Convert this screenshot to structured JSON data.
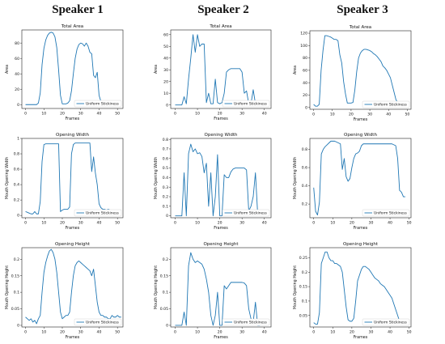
{
  "speakers": [
    "Speaker 1",
    "Speaker 2",
    "Speaker 3"
  ],
  "colors": {
    "series": "#1f77b4",
    "axis": "#222222",
    "text": "#111111"
  },
  "chart_data": [
    {
      "type": "line",
      "speaker": "Speaker 1",
      "title": "Total Area",
      "xlabel": "Frames",
      "ylabel": "Area",
      "xlim": [
        -2,
        53
      ],
      "ylim": [
        -5,
        97
      ],
      "xticks": [
        0,
        10,
        20,
        30,
        40,
        50
      ],
      "yticks": [
        0,
        20,
        40,
        60,
        80
      ],
      "legend": "lower right",
      "series": [
        {
          "name": "Uniform Stickiness",
          "x": [
            0,
            2,
            4,
            6,
            7,
            8,
            9,
            10,
            11,
            12,
            13,
            14,
            15,
            16,
            17,
            18,
            19,
            20,
            21,
            22,
            23,
            24,
            25,
            26,
            27,
            28,
            29,
            30,
            31,
            32,
            33,
            34,
            35,
            36,
            37,
            38,
            39,
            40,
            41
          ],
          "y": [
            0,
            0,
            0,
            0,
            2,
            15,
            52,
            73,
            84,
            90,
            93,
            94,
            93,
            88,
            74,
            45,
            12,
            1,
            1,
            1,
            2,
            5,
            18,
            40,
            60,
            72,
            78,
            80,
            79,
            76,
            80,
            76,
            68,
            66,
            38,
            35,
            42,
            12,
            4
          ]
        }
      ]
    },
    {
      "type": "line",
      "speaker": "Speaker 2",
      "title": "Total Area",
      "xlabel": "Frames",
      "ylabel": "Area",
      "xlim": [
        -2,
        43
      ],
      "ylim": [
        -3,
        64
      ],
      "xticks": [
        0,
        10,
        20,
        30,
        40
      ],
      "yticks": [
        0,
        10,
        20,
        30,
        40,
        50,
        60
      ],
      "legend": "lower right",
      "series": [
        {
          "name": "Uniform Stickiness",
          "x": [
            0,
            1,
            2,
            3,
            4,
            5,
            6,
            7,
            8,
            9,
            10,
            11,
            12,
            13,
            14,
            15,
            16,
            17,
            18,
            19,
            20,
            21,
            22,
            23,
            24,
            25,
            26,
            27,
            28,
            29,
            30,
            31,
            32,
            33,
            34,
            35,
            36,
            37
          ],
          "y": [
            0,
            0,
            0,
            0,
            7,
            1,
            22,
            40,
            60,
            45,
            60,
            50,
            52,
            52,
            2,
            10,
            1,
            1,
            22,
            2,
            1,
            2,
            10,
            28,
            30,
            31,
            31,
            31,
            31,
            31,
            28,
            10,
            12,
            1,
            1,
            13,
            1,
            1
          ]
        }
      ]
    },
    {
      "type": "line",
      "speaker": "Speaker 3",
      "title": "Total Area",
      "xlabel": "Frames",
      "ylabel": "Area",
      "xlim": [
        -2,
        52
      ],
      "ylim": [
        -3,
        124
      ],
      "xticks": [
        0,
        10,
        20,
        30,
        40,
        50
      ],
      "yticks": [
        0,
        20,
        40,
        60,
        80,
        100,
        120
      ],
      "legend": "lower right",
      "series": [
        {
          "name": "Uniform Stickiness",
          "x": [
            0,
            1,
            2,
            3,
            4,
            5,
            6,
            7,
            8,
            9,
            10,
            11,
            12,
            13,
            14,
            15,
            16,
            17,
            18,
            19,
            20,
            21,
            22,
            23,
            24,
            25,
            26,
            27,
            28,
            29,
            30,
            31,
            32,
            33,
            34,
            35,
            36,
            37,
            38,
            39,
            40,
            41,
            42,
            43,
            44,
            45,
            46
          ],
          "y": [
            5,
            2,
            2,
            5,
            60,
            92,
            116,
            116,
            115,
            114,
            112,
            110,
            110,
            108,
            85,
            72,
            42,
            22,
            7,
            7,
            7,
            8,
            28,
            58,
            80,
            88,
            92,
            94,
            94,
            93,
            92,
            90,
            87,
            85,
            82,
            78,
            74,
            67,
            64,
            60,
            54,
            48,
            36,
            24,
            12,
            8,
            8
          ]
        }
      ]
    },
    {
      "type": "line",
      "speaker": "Speaker 1",
      "title": "Opening Width",
      "xlabel": "Frames",
      "ylabel": "Mouth Opening Width",
      "xlim": [
        -2,
        53
      ],
      "ylim": [
        -0.03,
        1.0
      ],
      "xticks": [
        0,
        10,
        20,
        30,
        40,
        50
      ],
      "yticks": [
        0.0,
        0.2,
        0.4,
        0.6,
        0.8,
        1.0
      ],
      "legend": "lower right",
      "series": [
        {
          "name": "Uniform Stickiness",
          "x": [
            0,
            1,
            2,
            3,
            4,
            5,
            6,
            7,
            8,
            9,
            10,
            11,
            12,
            13,
            14,
            15,
            16,
            17,
            18,
            19,
            20,
            21,
            22,
            23,
            24,
            25,
            26,
            27,
            28,
            29,
            30,
            31,
            32,
            33,
            34,
            35,
            36,
            37,
            38,
            39,
            40,
            41,
            42,
            43,
            44,
            45,
            46,
            47,
            48,
            49,
            50,
            51,
            52
          ],
          "y": [
            0.05,
            0.04,
            0.03,
            0.02,
            0.02,
            0.05,
            0.02,
            0.02,
            0.18,
            0.7,
            0.92,
            0.93,
            0.93,
            0.93,
            0.93,
            0.93,
            0.93,
            0.93,
            0.93,
            0.05,
            0.07,
            0.08,
            0.08,
            0.08,
            0.11,
            0.8,
            0.92,
            0.94,
            0.94,
            0.94,
            0.94,
            0.94,
            0.94,
            0.94,
            0.94,
            0.94,
            0.57,
            0.76,
            0.55,
            0.4,
            0.15,
            0.1,
            0.08,
            0.08,
            0.07,
            0.08,
            0.07,
            0.06,
            0.07,
            0.07,
            0.06,
            0.06,
            0.07
          ]
        }
      ]
    },
    {
      "type": "line",
      "speaker": "Speaker 2",
      "title": "Opening Width",
      "xlabel": "Frames",
      "ylabel": "Mouth Opening Width",
      "xlim": [
        -2,
        43
      ],
      "ylim": [
        -0.02,
        0.81
      ],
      "xticks": [
        0,
        10,
        20,
        30,
        40
      ],
      "yticks": [
        0.0,
        0.1,
        0.2,
        0.3,
        0.4,
        0.5,
        0.6,
        0.7,
        0.8
      ],
      "legend": "lower right",
      "series": [
        {
          "name": "Uniform Stickiness",
          "x": [
            0,
            1,
            2,
            3,
            4,
            5,
            6,
            7,
            8,
            9,
            10,
            11,
            12,
            13,
            14,
            15,
            16,
            17,
            18,
            19,
            20,
            21,
            22,
            23,
            24,
            25,
            26,
            27,
            28,
            29,
            30,
            31,
            32,
            33,
            34,
            35,
            36,
            37,
            38
          ],
          "y": [
            0.0,
            0.0,
            0.0,
            0.0,
            0.45,
            0.0,
            0.65,
            0.75,
            0.67,
            0.7,
            0.65,
            0.66,
            0.62,
            0.45,
            0.55,
            0.1,
            0.45,
            0.0,
            0.2,
            0.64,
            0.0,
            0.0,
            0.43,
            0.4,
            0.4,
            0.46,
            0.49,
            0.5,
            0.5,
            0.5,
            0.5,
            0.5,
            0.48,
            0.05,
            0.1,
            0.2,
            0.45,
            0.02,
            0.0
          ]
        }
      ]
    },
    {
      "type": "line",
      "speaker": "Speaker 3",
      "title": "Opening Width",
      "xlabel": "Frames",
      "ylabel": "Mouth Opening Width",
      "xlim": [
        -2,
        51
      ],
      "ylim": [
        0.05,
        0.92
      ],
      "xticks": [
        0,
        10,
        20,
        30,
        40,
        50
      ],
      "yticks": [
        0.2,
        0.4,
        0.6,
        0.8
      ],
      "legend": "lower right",
      "series": [
        {
          "name": "Uniform Stickiness",
          "x": [
            0,
            1,
            2,
            3,
            4,
            5,
            6,
            7,
            8,
            9,
            10,
            11,
            12,
            13,
            14,
            15,
            16,
            17,
            18,
            19,
            20,
            21,
            22,
            23,
            24,
            25,
            26,
            27,
            28,
            29,
            30,
            31,
            32,
            33,
            34,
            35,
            36,
            37,
            38,
            39,
            40,
            41,
            42,
            43,
            44,
            45,
            46,
            47,
            48
          ],
          "y": [
            0.38,
            0.12,
            0.08,
            0.22,
            0.75,
            0.8,
            0.83,
            0.85,
            0.87,
            0.89,
            0.89,
            0.89,
            0.88,
            0.87,
            0.86,
            0.58,
            0.7,
            0.5,
            0.45,
            0.48,
            0.6,
            0.7,
            0.75,
            0.76,
            0.78,
            0.84,
            0.86,
            0.86,
            0.86,
            0.86,
            0.86,
            0.86,
            0.86,
            0.86,
            0.86,
            0.86,
            0.86,
            0.86,
            0.86,
            0.86,
            0.86,
            0.86,
            0.85,
            0.84,
            0.7,
            0.35,
            0.33,
            0.28,
            0.28
          ]
        }
      ]
    },
    {
      "type": "line",
      "speaker": "Speaker 1",
      "title": "Opening Height",
      "xlabel": "Frames",
      "ylabel": "Mouth Opening Height",
      "xlim": [
        -2,
        53
      ],
      "ylim": [
        -0.005,
        0.235
      ],
      "xticks": [
        0,
        10,
        20,
        30,
        40,
        50
      ],
      "yticks": [
        0.0,
        0.05,
        0.1,
        0.15,
        0.2
      ],
      "legend": "lower right",
      "series": [
        {
          "name": "Uniform Stickiness",
          "x": [
            0,
            1,
            2,
            3,
            4,
            5,
            6,
            7,
            8,
            9,
            10,
            11,
            12,
            13,
            14,
            15,
            16,
            17,
            18,
            19,
            20,
            21,
            22,
            23,
            24,
            25,
            26,
            27,
            28,
            29,
            30,
            31,
            32,
            33,
            34,
            35,
            36,
            37,
            38,
            39,
            40,
            41,
            42,
            43,
            44,
            45,
            46,
            47,
            48,
            49,
            50,
            51,
            52
          ],
          "y": [
            0.025,
            0.02,
            0.015,
            0.02,
            0.01,
            0.015,
            0.005,
            0.02,
            0.03,
            0.1,
            0.16,
            0.19,
            0.21,
            0.225,
            0.23,
            0.22,
            0.2,
            0.16,
            0.1,
            0.04,
            0.02,
            0.025,
            0.03,
            0.03,
            0.04,
            0.1,
            0.15,
            0.18,
            0.19,
            0.195,
            0.19,
            0.185,
            0.18,
            0.175,
            0.17,
            0.165,
            0.15,
            0.17,
            0.12,
            0.07,
            0.04,
            0.03,
            0.03,
            0.025,
            0.025,
            0.02,
            0.02,
            0.03,
            0.025,
            0.025,
            0.03,
            0.025,
            0.025
          ]
        }
      ]
    },
    {
      "type": "line",
      "speaker": "Speaker 2",
      "title": "Opening Height",
      "xlabel": "Frames",
      "ylabel": "Mouth Opening Height",
      "xlim": [
        -2,
        43
      ],
      "ylim": [
        -0.005,
        0.235
      ],
      "xticks": [
        0,
        10,
        20,
        30,
        40
      ],
      "yticks": [
        0.0,
        0.05,
        0.1,
        0.15,
        0.2
      ],
      "legend": "lower right",
      "series": [
        {
          "name": "Uniform Stickiness",
          "x": [
            0,
            1,
            2,
            3,
            4,
            5,
            6,
            7,
            8,
            9,
            10,
            11,
            12,
            13,
            14,
            15,
            16,
            17,
            18,
            19,
            20,
            21,
            22,
            23,
            24,
            25,
            26,
            27,
            28,
            29,
            30,
            31,
            32,
            33,
            34,
            35,
            36,
            37,
            38
          ],
          "y": [
            0.0,
            0.0,
            0.0,
            0.0,
            0.04,
            0.0,
            0.18,
            0.22,
            0.2,
            0.19,
            0.195,
            0.19,
            0.185,
            0.17,
            0.14,
            0.1,
            0.03,
            0.0,
            0.03,
            0.1,
            0.0,
            0.0,
            0.12,
            0.11,
            0.12,
            0.13,
            0.13,
            0.13,
            0.13,
            0.13,
            0.13,
            0.128,
            0.12,
            0.05,
            0.02,
            0.01,
            0.07,
            0.0,
            0.0
          ]
        }
      ]
    },
    {
      "type": "line",
      "speaker": "Speaker 3",
      "title": "Opening Height",
      "xlabel": "Frames",
      "ylabel": "Mouth Opening Height",
      "xlim": [
        -2,
        51
      ],
      "ylim": [
        0.01,
        0.285
      ],
      "xticks": [
        0,
        10,
        20,
        30,
        40,
        50
      ],
      "yticks": [
        0.05,
        0.1,
        0.15,
        0.2,
        0.25
      ],
      "legend": "lower right",
      "series": [
        {
          "name": "Uniform Stickiness",
          "x": [
            0,
            1,
            2,
            3,
            4,
            5,
            6,
            7,
            8,
            9,
            10,
            11,
            12,
            13,
            14,
            15,
            16,
            17,
            18,
            19,
            20,
            21,
            22,
            23,
            24,
            25,
            26,
            27,
            28,
            29,
            30,
            31,
            32,
            33,
            34,
            35,
            36,
            37,
            38,
            39,
            40,
            41,
            42,
            43,
            44,
            45,
            46
          ],
          "y": [
            0.025,
            0.02,
            0.02,
            0.06,
            0.23,
            0.25,
            0.27,
            0.27,
            0.25,
            0.24,
            0.24,
            0.23,
            0.23,
            0.225,
            0.22,
            0.2,
            0.14,
            0.08,
            0.035,
            0.03,
            0.03,
            0.04,
            0.1,
            0.17,
            0.19,
            0.21,
            0.22,
            0.22,
            0.215,
            0.21,
            0.2,
            0.19,
            0.18,
            0.175,
            0.17,
            0.16,
            0.155,
            0.15,
            0.14,
            0.13,
            0.12,
            0.11,
            0.09,
            0.07,
            0.05,
            0.03,
            0.02
          ]
        }
      ]
    }
  ]
}
